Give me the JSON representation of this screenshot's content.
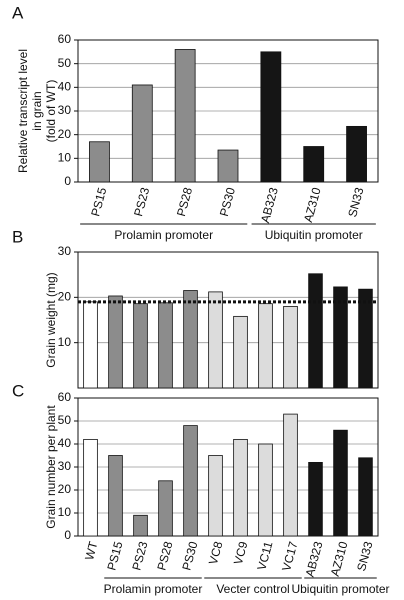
{
  "chart_data": [
    {
      "type": "bar",
      "panel_label": "A",
      "ylabel": [
        "Relative transcript level",
        "in grain",
        "(fold of WT)"
      ],
      "categories": [
        "PS15",
        "PS23",
        "PS28",
        "PS30",
        "AB323",
        "AZ310",
        "SN33"
      ],
      "series": [
        {
          "name": "Prolamin promoter",
          "color": "#8c8c8c",
          "values": [
            17,
            41,
            56,
            13.5,
            null,
            null,
            null
          ]
        },
        {
          "name": "Ubiquitin promoter",
          "color": "#151515",
          "values": [
            null,
            null,
            null,
            null,
            55,
            15,
            23.5
          ]
        }
      ],
      "ylim": [
        0,
        60
      ],
      "yticks": [
        0,
        10,
        20,
        30,
        40,
        50,
        60
      ],
      "grid": true
    },
    {
      "type": "bar",
      "panel_label": "B",
      "ylabel": [
        "Grain weight (mg)"
      ],
      "categories": [
        null,
        null,
        null,
        null,
        null,
        null,
        null,
        null,
        null,
        null,
        null,
        null
      ],
      "series": [
        {
          "color": "#ffffff",
          "values": [
            19,
            null,
            null,
            null,
            null,
            null,
            null,
            null,
            null,
            null,
            null,
            null
          ]
        },
        {
          "color": "#8c8c8c",
          "values": [
            null,
            20.3,
            18.6,
            18.8,
            21.5,
            null,
            null,
            null,
            null,
            null,
            null,
            null
          ]
        },
        {
          "color": "#dcdcdc",
          "values": [
            null,
            null,
            null,
            null,
            null,
            21.2,
            15.8,
            18.6,
            18,
            null,
            null,
            null
          ]
        },
        {
          "color": "#151515",
          "values": [
            null,
            null,
            null,
            null,
            null,
            null,
            null,
            null,
            null,
            25.2,
            22.3,
            21.8
          ]
        }
      ],
      "reference_line": 19,
      "ylim": [
        0,
        30
      ],
      "yticks": [
        10,
        20,
        30
      ],
      "grid": true
    },
    {
      "type": "bar",
      "panel_label": "C",
      "ylabel": [
        "Grain number per plant"
      ],
      "categories": [
        "WT",
        "PS15",
        "PS23",
        "PS28",
        "PS30",
        "VC8",
        "VC9",
        "VC11",
        "VC17",
        "AB323",
        "AZ310",
        "SN33"
      ],
      "series": [
        {
          "color": "#ffffff",
          "values": [
            42,
            null,
            null,
            null,
            null,
            null,
            null,
            null,
            null,
            null,
            null,
            null
          ]
        },
        {
          "name": "Prolamin promoter",
          "color": "#8c8c8c",
          "values": [
            null,
            35,
            9,
            24,
            48,
            null,
            null,
            null,
            null,
            null,
            null,
            null
          ]
        },
        {
          "name": "Vecter control",
          "color": "#dcdcdc",
          "values": [
            null,
            null,
            null,
            null,
            null,
            35,
            42,
            40,
            53,
            null,
            null,
            null
          ]
        },
        {
          "name": "Ubiquitin promoter",
          "color": "#151515",
          "values": [
            null,
            null,
            null,
            null,
            null,
            null,
            null,
            null,
            null,
            32,
            46,
            34
          ]
        }
      ],
      "ylim": [
        0,
        60
      ],
      "yticks": [
        0,
        10,
        20,
        30,
        40,
        50,
        60
      ],
      "grid": true
    }
  ]
}
